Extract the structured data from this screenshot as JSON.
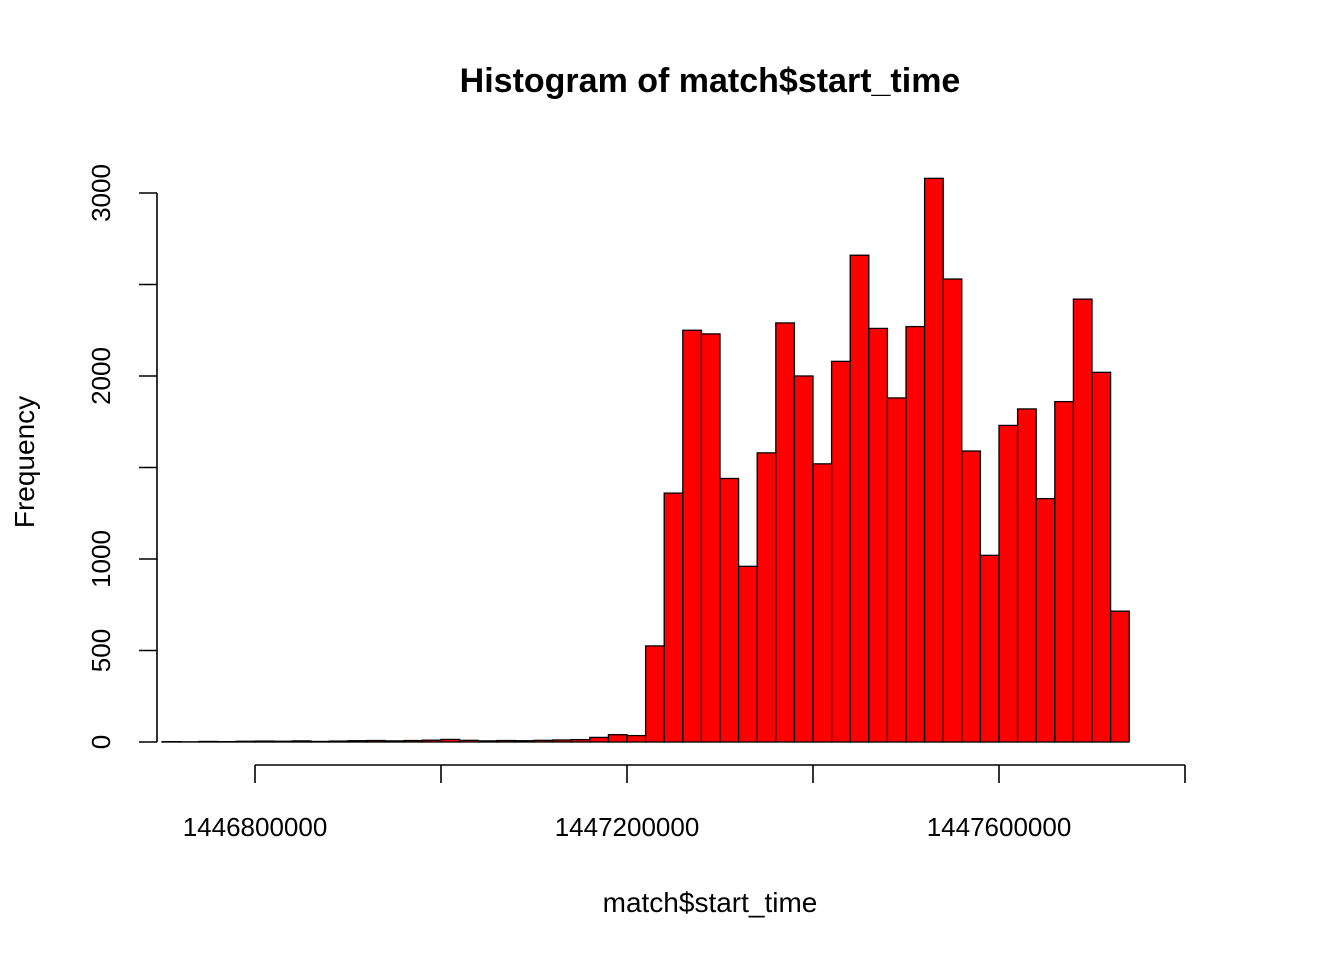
{
  "chart_data": {
    "type": "histogram",
    "title": "Histogram of match$start_time",
    "xlabel": "match$start_time",
    "ylabel": "Frequency",
    "bin_width": 20000,
    "bins_start": 1446700000,
    "counts": [
      2,
      1,
      3,
      2,
      4,
      5,
      4,
      6,
      3,
      5,
      7,
      8,
      6,
      8,
      10,
      14,
      9,
      6,
      8,
      7,
      9,
      11,
      13,
      25,
      40,
      35,
      525,
      1360,
      2250,
      2230,
      1440,
      960,
      1580,
      2290,
      2000,
      1520,
      2080,
      2660,
      2260,
      1880,
      2270,
      3080,
      2530,
      1590,
      1020,
      1730,
      1820,
      1330,
      1860,
      2420,
      2020,
      715
    ],
    "x_ticks": [
      1446800000,
      1447000000,
      1447200000,
      1447400000,
      1447600000,
      1447800000
    ],
    "x_tick_labels": [
      "1446800000",
      "",
      "1447200000",
      "",
      "1447600000",
      ""
    ],
    "y_ticks": [
      0,
      500,
      1000,
      1500,
      2000,
      2500,
      3000
    ],
    "y_tick_labels": [
      "0",
      "500",
      "1000",
      "",
      "2000",
      "",
      "3000"
    ],
    "bar_color": "#ff0000",
    "grid": false
  }
}
